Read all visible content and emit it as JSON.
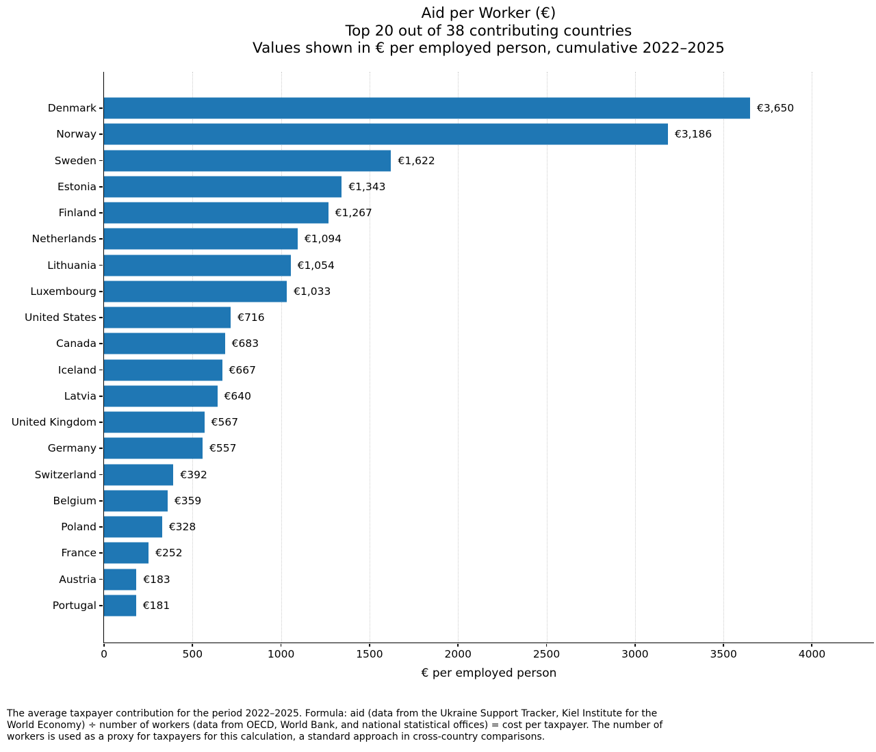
{
  "chart_data": {
    "type": "bar",
    "orientation": "horizontal",
    "title": "Aid per Worker (€)\nTop 20 out of 38 contributing countries\nValues shown in € per employed person, cumulative 2022–2025",
    "xlabel": "€ per employed person",
    "categories": [
      "Denmark",
      "Norway",
      "Sweden",
      "Estonia",
      "Finland",
      "Netherlands",
      "Lithuania",
      "Luxembourg",
      "United States",
      "Canada",
      "Iceland",
      "Latvia",
      "United Kingdom",
      "Germany",
      "Switzerland",
      "Belgium",
      "Poland",
      "France",
      "Austria",
      "Portugal"
    ],
    "values": [
      3650,
      3186,
      1622,
      1343,
      1267,
      1094,
      1054,
      1033,
      716,
      683,
      667,
      640,
      567,
      557,
      392,
      359,
      328,
      252,
      183,
      181
    ],
    "value_labels": [
      "€3,650",
      "€3,186",
      "€1,622",
      "€1,343",
      "€1,267",
      "€1,094",
      "€1,054",
      "€1,033",
      "€716",
      "€683",
      "€667",
      "€640",
      "€567",
      "€557",
      "€392",
      "€359",
      "€328",
      "€252",
      "€183",
      "€181"
    ],
    "xticks": [
      0,
      500,
      1000,
      1500,
      2000,
      2500,
      3000,
      3500,
      4000
    ],
    "xtick_labels": [
      "0",
      "500",
      "1000",
      "1500",
      "2000",
      "2500",
      "3000",
      "3500",
      "4000"
    ],
    "xlim": [
      0,
      4350
    ],
    "grid": "vertical-dotted",
    "legend": "none",
    "bar_color": "#1f77b4",
    "axis_color": "#000000",
    "gridline_color": "#cbcbcb"
  },
  "footnote": "The average taxpayer contribution for the period 2022–2025. Formula: aid (data from the Ukraine Support Tracker, Kiel Institute for the\nWorld Economy) ÷ number of workers (data from OECD, World Bank, and national statistical offices) = cost per taxpayer. The number of\nworkers is used as a proxy for taxpayers for this calculation, a standard approach in cross-country comparisons."
}
